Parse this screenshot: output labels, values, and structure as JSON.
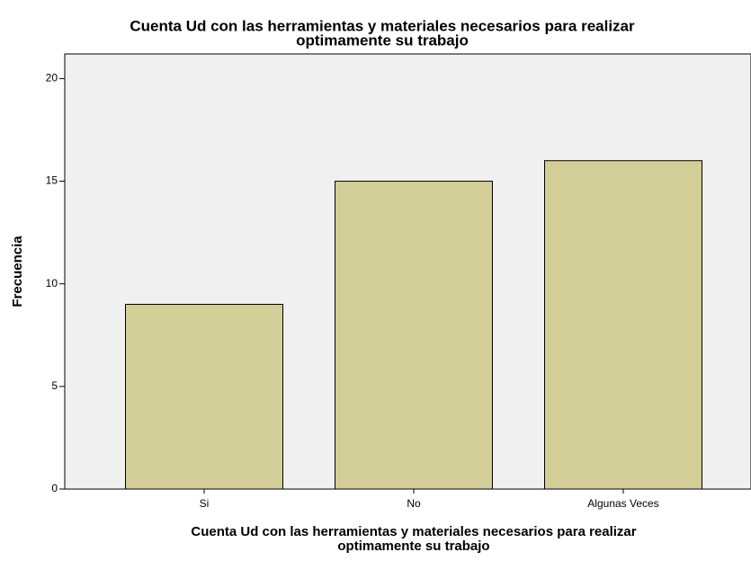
{
  "chart_data": {
    "type": "bar",
    "title": [
      "Cuenta Ud con las herramientas y materiales necesarios para realizar",
      "optimamente su trabajo"
    ],
    "xlabel": [
      "Cuenta Ud con las herramientas y materiales necesarios para realizar",
      "optimamente su trabajo"
    ],
    "ylabel": "Frecuencia",
    "categories": [
      "Si",
      "No",
      "Algunas Veces"
    ],
    "values": [
      9,
      15,
      16
    ],
    "color": "#d3ce97",
    "ylim": [
      0,
      21.2
    ],
    "yticks": [
      0,
      5,
      10,
      15,
      20
    ],
    "grid": false
  }
}
